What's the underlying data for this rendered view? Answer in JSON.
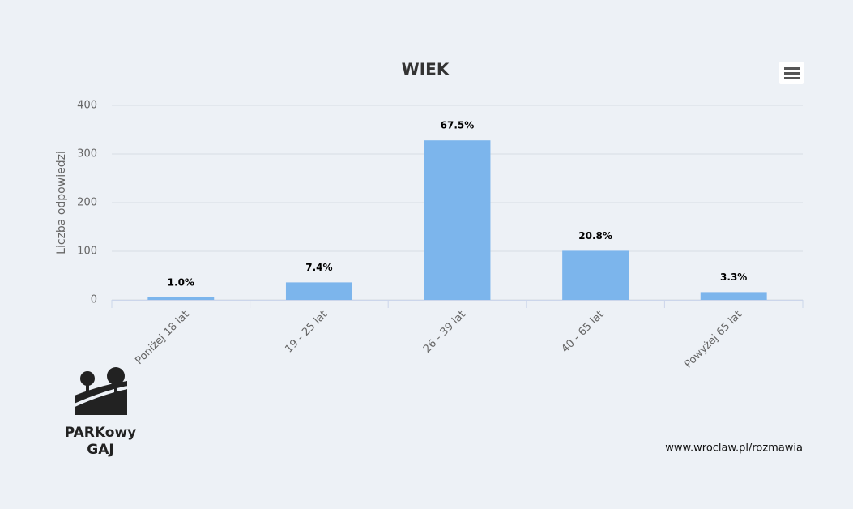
{
  "chart_data": {
    "type": "bar",
    "title": "WIEK",
    "y_label": "Liczba odpowiedzi",
    "categories": [
      "Poniżej 18 lat",
      "19 - 25 lat",
      "26 - 39 lat",
      "40 - 65 lat",
      "Powyżej 65 lat"
    ],
    "values": [
      5,
      36,
      328,
      101,
      16
    ],
    "value_labels": [
      "1.0%",
      "7.4%",
      "67.5%",
      "20.8%",
      "3.3%"
    ],
    "color": "#7cb5ec",
    "ylim": [
      0,
      400
    ],
    "yticks": [
      0,
      100,
      200,
      300,
      400
    ],
    "grid": true
  },
  "logo": {
    "line1": "PARKowy",
    "line2": "GAJ"
  },
  "footer": "www.wroclaw.pl/rozmawia"
}
